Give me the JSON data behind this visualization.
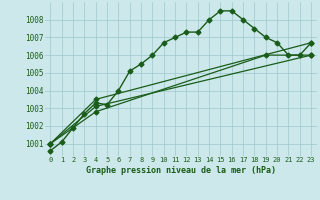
{
  "title": "Graphe pression niveau de la mer (hPa)",
  "bg_color": "#cce8ea",
  "grid_color": "#9cc8cc",
  "line_color": "#1a5c1a",
  "xlim": [
    -0.5,
    23.5
  ],
  "ylim": [
    1000.3,
    1009.0
  ],
  "yticks": [
    1001,
    1002,
    1003,
    1004,
    1005,
    1006,
    1007,
    1008
  ],
  "xtick_labels": [
    "0",
    "1",
    "2",
    "3",
    "4",
    "5",
    "6",
    "7",
    "8",
    "9",
    "10",
    "11",
    "12",
    "13",
    "14",
    "15",
    "16",
    "17",
    "18",
    "19",
    "20",
    "21",
    "22",
    "23"
  ],
  "series": [
    {
      "x": [
        0,
        1,
        2,
        3,
        4,
        5,
        6,
        7,
        8,
        9,
        10,
        11,
        12,
        13,
        14,
        15,
        16,
        17,
        18,
        19,
        20,
        21,
        22,
        23
      ],
      "y": [
        1000.6,
        1001.1,
        1001.9,
        1002.7,
        1003.3,
        1003.2,
        1004.0,
        1005.1,
        1005.5,
        1006.0,
        1006.7,
        1007.0,
        1007.3,
        1007.3,
        1008.0,
        1008.5,
        1008.5,
        1008.0,
        1007.5,
        1007.0,
        1006.7,
        1006.0,
        1006.0,
        1006.7
      ],
      "marker": "D",
      "markersize": 2.5,
      "linewidth": 1.0
    },
    {
      "x": [
        0,
        4,
        23
      ],
      "y": [
        1001.0,
        1003.5,
        1006.7
      ],
      "marker": "D",
      "markersize": 2.5,
      "linewidth": 0.9
    },
    {
      "x": [
        0,
        4,
        23
      ],
      "y": [
        1001.0,
        1003.1,
        1006.0
      ],
      "marker": "D",
      "markersize": 2.5,
      "linewidth": 0.9
    },
    {
      "x": [
        0,
        4,
        19,
        23
      ],
      "y": [
        1001.0,
        1002.8,
        1006.0,
        1006.0
      ],
      "marker": "D",
      "markersize": 2.5,
      "linewidth": 0.9
    }
  ]
}
